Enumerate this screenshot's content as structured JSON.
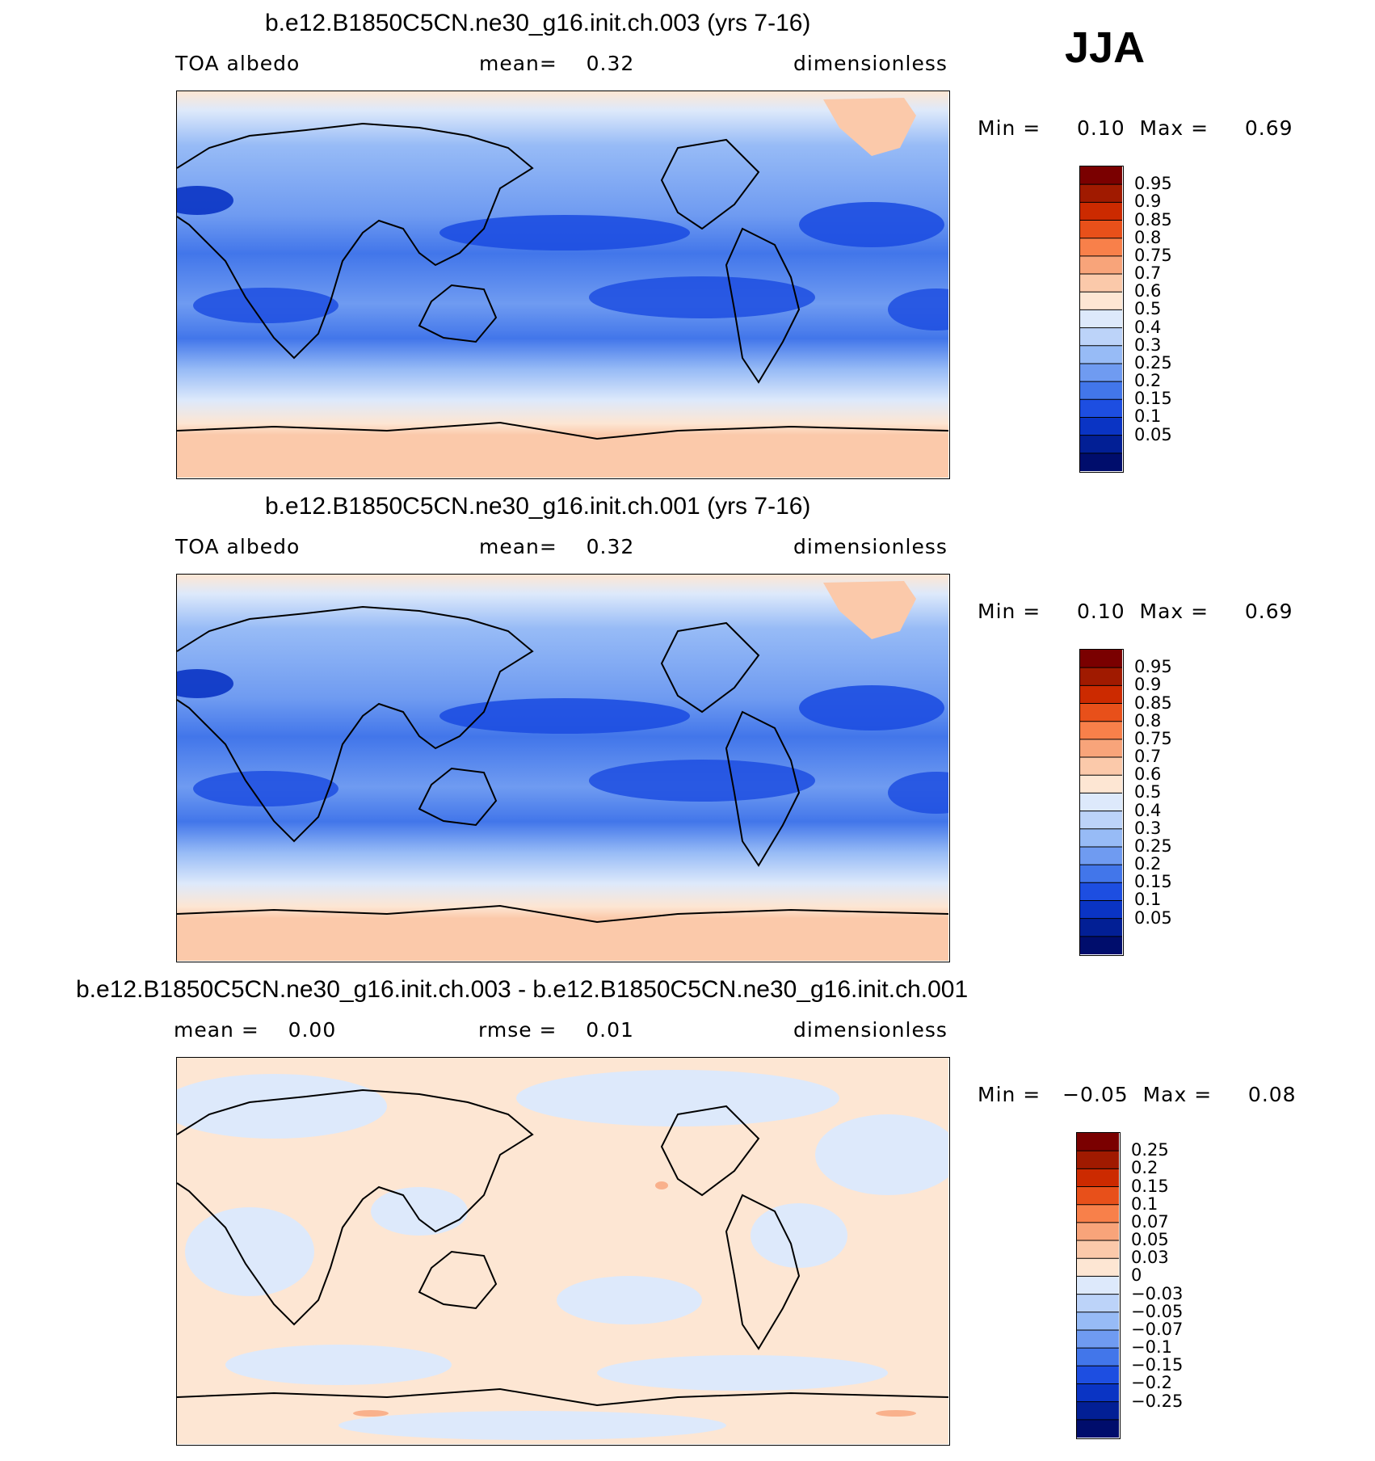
{
  "season": "JJA",
  "panels": [
    {
      "title": "b.e12.B1850C5CN.ne30_g16.init.ch.003 (yrs 7-16)",
      "left": "TOA albedo",
      "mid": "mean=    0.32",
      "right": "dimensionless",
      "minmax": "Min =     0.10  Max =     0.69",
      "colorbar": {
        "colors": [
          "#7a0000",
          "#a01a00",
          "#cc2a00",
          "#e8501a",
          "#f8804a",
          "#f8a47a",
          "#fbc9aa",
          "#fde6d3",
          "#dde9fb",
          "#bcd3f9",
          "#97bbf6",
          "#6f9bf1",
          "#4276ea",
          "#1d4ee1",
          "#0a34c4",
          "#021f95",
          "#000d6c"
        ],
        "labels": [
          "0.95",
          "0.9",
          "0.85",
          "0.8",
          "0.75",
          "0.7",
          "0.6",
          "0.5",
          "0.4",
          "0.3",
          "0.25",
          "0.2",
          "0.15",
          "0.1",
          "0.05"
        ]
      }
    },
    {
      "title": "b.e12.B1850C5CN.ne30_g16.init.ch.001 (yrs 7-16)",
      "left": "TOA albedo",
      "mid": "mean=    0.32",
      "right": "dimensionless",
      "minmax": "Min =     0.10  Max =     0.69",
      "colorbar": {
        "colors": [
          "#7a0000",
          "#a01a00",
          "#cc2a00",
          "#e8501a",
          "#f8804a",
          "#f8a47a",
          "#fbc9aa",
          "#fde6d3",
          "#dde9fb",
          "#bcd3f9",
          "#97bbf6",
          "#6f9bf1",
          "#4276ea",
          "#1d4ee1",
          "#0a34c4",
          "#021f95",
          "#000d6c"
        ],
        "labels": [
          "0.95",
          "0.9",
          "0.85",
          "0.8",
          "0.75",
          "0.7",
          "0.6",
          "0.5",
          "0.4",
          "0.3",
          "0.25",
          "0.2",
          "0.15",
          "0.1",
          "0.05"
        ]
      }
    },
    {
      "title": "b.e12.B1850C5CN.ne30_g16.init.ch.003 - b.e12.B1850C5CN.ne30_g16.init.ch.001",
      "left": "mean =    0.00",
      "mid": "rmse =    0.01",
      "right": "dimensionless",
      "minmax": "Min =   −0.05  Max =     0.08",
      "colorbar": {
        "colors": [
          "#7a0000",
          "#a01a00",
          "#cc2a00",
          "#e8501a",
          "#f8804a",
          "#f8a47a",
          "#fbc9aa",
          "#fde6d3",
          "#dde9fb",
          "#bcd3f9",
          "#97bbf6",
          "#6f9bf1",
          "#4276ea",
          "#1d4ee1",
          "#0a34c4",
          "#021f95",
          "#000d6c"
        ],
        "labels": [
          "0.25",
          "0.2",
          "0.15",
          "0.1",
          "0.07",
          "0.05",
          "0.03",
          "0",
          "−0.03",
          "−0.05",
          "−0.07",
          "−0.1",
          "−0.15",
          "−0.2",
          "−0.25"
        ]
      }
    }
  ]
}
